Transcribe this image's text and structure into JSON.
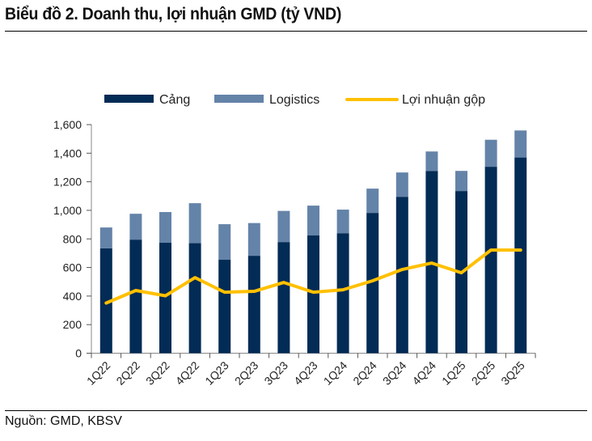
{
  "title": "Biểu đồ 2. Doanh thu, lợi nhuận GMD (tỷ VND)",
  "source": "Nguồn: GMD, KBSV",
  "chart_data": {
    "type": "bar",
    "stacked": true,
    "categories": [
      "1Q22",
      "2Q22",
      "3Q22",
      "4Q22",
      "1Q23",
      "2Q23",
      "3Q23",
      "4Q23",
      "1Q24",
      "2Q24",
      "3Q24",
      "4Q24",
      "1Q25",
      "2Q25",
      "3Q25"
    ],
    "series": [
      {
        "name": "Cảng",
        "type": "bar",
        "color": "#022b55",
        "values": [
          734,
          795,
          773,
          770,
          654,
          682,
          778,
          824,
          840,
          982,
          1095,
          1276,
          1135,
          1305,
          1370
        ]
      },
      {
        "name": "Logistics",
        "type": "bar",
        "color": "#6483a8",
        "values": [
          146,
          181,
          215,
          280,
          249,
          229,
          218,
          209,
          165,
          170,
          170,
          136,
          141,
          189,
          189
        ]
      },
      {
        "name": "Lợi nhuận gộp",
        "type": "line",
        "color": "#ffc000",
        "values": [
          351,
          439,
          402,
          529,
          427,
          433,
          495,
          427,
          444,
          507,
          586,
          631,
          563,
          722,
          722
        ]
      }
    ],
    "yticks": [
      "0",
      "200",
      "400",
      "600",
      "800",
      "1,000",
      "1,200",
      "1,400",
      "1,600"
    ],
    "ylim": [
      0,
      1600
    ],
    "legend": "top",
    "grid": false
  }
}
